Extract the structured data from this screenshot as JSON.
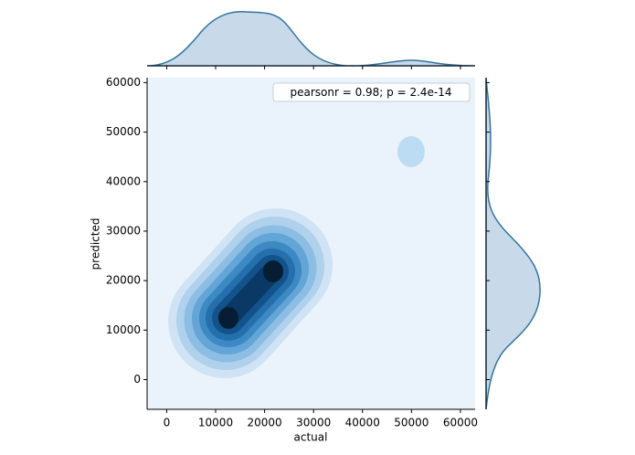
{
  "chart_data": {
    "type": "kde",
    "xlabel": "actual",
    "ylabel": "predicted",
    "annotation": "pearsonr = 0.98; p = 2.4e-14",
    "xlim": [
      -4000,
      63000
    ],
    "xticks": [
      0,
      10000,
      20000,
      30000,
      40000,
      50000,
      60000
    ],
    "ylim": [
      -6000,
      61000
    ],
    "yticks": [
      0,
      10000,
      20000,
      30000,
      40000,
      50000,
      60000
    ],
    "color": "#3274a1"
  }
}
